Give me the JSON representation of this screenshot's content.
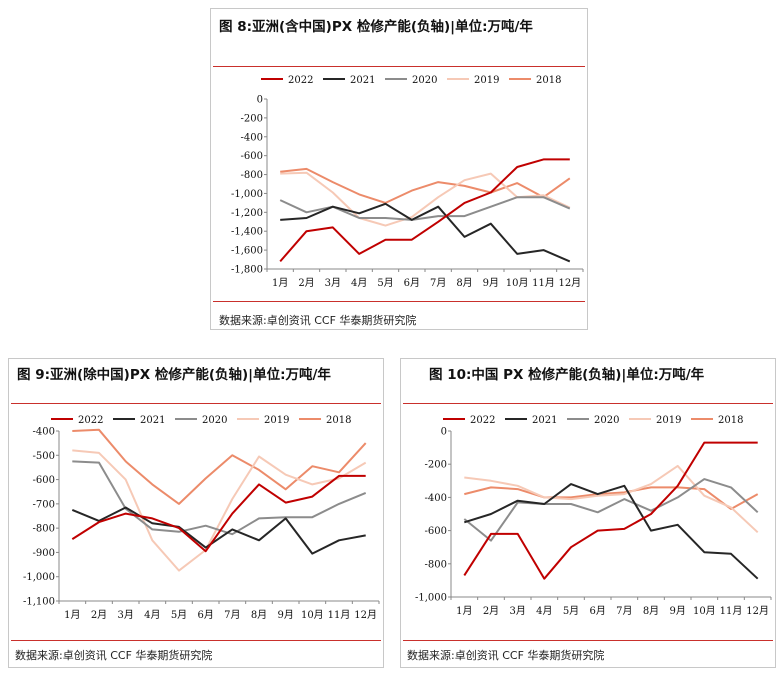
{
  "charts": [
    {
      "title": "图 8:亚洲(含中国)PX 检修产能(负轴)|单位:万吨/年",
      "source": "数据来源:卓创资讯 CCF 华泰期货研究院"
    },
    {
      "title": "图 9:亚洲(除中国)PX 检修产能(负轴)|单位:万吨/年",
      "source": "数据来源:卓创资讯 CCF 华泰期货研究院"
    },
    {
      "title": "图 10:中国 PX 检修产能(负轴)|单位:万吨/年",
      "source": "数据来源:卓创资讯 CCF 华泰期货研究院"
    }
  ],
  "chart_data": [
    {
      "type": "line",
      "title": "图 8:亚洲(含中国)PX 检修产能(负轴)|单位:万吨/年",
      "categories": [
        "1月",
        "2月",
        "3月",
        "4月",
        "5月",
        "6月",
        "7月",
        "8月",
        "9月",
        "10月",
        "11月",
        "12月"
      ],
      "yticks": [
        0,
        -200,
        -400,
        -600,
        -800,
        "-1,000",
        "-1,200",
        "-1,400",
        "-1,600",
        "-1,800"
      ],
      "ylim": [
        -1800,
        0
      ],
      "series": [
        {
          "name": "2022",
          "color": "#c00000",
          "width": 2,
          "values": [
            -1720,
            -1400,
            -1360,
            -1640,
            -1490,
            -1490,
            -1300,
            -1100,
            -990,
            -720,
            -640,
            -640
          ]
        },
        {
          "name": "2021",
          "color": "#262626",
          "width": 2,
          "values": [
            -1280,
            -1260,
            -1140,
            -1210,
            -1110,
            -1280,
            -1140,
            -1460,
            -1320,
            -1640,
            -1600,
            -1720
          ]
        },
        {
          "name": "2020",
          "color": "#8c8c8c",
          "width": 2,
          "values": [
            -1070,
            -1200,
            -1140,
            -1260,
            -1260,
            -1280,
            -1240,
            -1240,
            -1140,
            -1040,
            -1040,
            -1160
          ]
        },
        {
          "name": "2019",
          "color": "#f6c9b6",
          "width": 2,
          "values": [
            -790,
            -780,
            -990,
            -1260,
            -1340,
            -1250,
            -1040,
            -860,
            -790,
            -1040,
            -1020,
            -1150
          ]
        },
        {
          "name": "2018",
          "color": "#ec8b6a",
          "width": 2,
          "values": [
            -770,
            -740,
            -880,
            -1010,
            -1100,
            -970,
            -880,
            -920,
            -990,
            -890,
            -1040,
            -840
          ]
        }
      ]
    },
    {
      "type": "line",
      "title": "图 9:亚洲(除中国)PX 检修产能(负轴)|单位:万吨/年",
      "categories": [
        "1月",
        "2月",
        "3月",
        "4月",
        "5月",
        "6月",
        "7月",
        "8月",
        "9月",
        "10月",
        "11月",
        "12月"
      ],
      "yticks": [
        -400,
        -500,
        -600,
        -700,
        -800,
        -900,
        "-1,000",
        "-1,100"
      ],
      "ylim": [
        -1100,
        -400
      ],
      "series": [
        {
          "name": "2022",
          "color": "#c00000",
          "width": 2,
          "values": [
            -845,
            -775,
            -740,
            -760,
            -800,
            -895,
            -740,
            -620,
            -695,
            -670,
            -585,
            -585
          ]
        },
        {
          "name": "2021",
          "color": "#262626",
          "width": 2,
          "values": [
            -725,
            -770,
            -715,
            -780,
            -795,
            -880,
            -805,
            -850,
            -760,
            -905,
            -850,
            -830
          ]
        },
        {
          "name": "2020",
          "color": "#8c8c8c",
          "width": 2,
          "values": [
            -525,
            -530,
            -720,
            -805,
            -815,
            -790,
            -825,
            -760,
            -755,
            -755,
            -700,
            -655
          ]
        },
        {
          "name": "2019",
          "color": "#f6c9b6",
          "width": 2,
          "values": [
            -480,
            -490,
            -600,
            -850,
            -975,
            -890,
            -680,
            -505,
            -580,
            -620,
            -595,
            -530
          ]
        },
        {
          "name": "2018",
          "color": "#ec8b6a",
          "width": 2,
          "values": [
            -400,
            -395,
            -525,
            -620,
            -700,
            -595,
            -500,
            -560,
            -640,
            -545,
            -570,
            -450
          ]
        }
      ]
    },
    {
      "type": "line",
      "title": "图 10:中国 PX 检修产能(负轴)|单位:万吨/年",
      "categories": [
        "1月",
        "2月",
        "3月",
        "4月",
        "5月",
        "6月",
        "7月",
        "8月",
        "9月",
        "10月",
        "11月",
        "12月"
      ],
      "yticks": [
        0,
        -200,
        -400,
        -600,
        -800,
        "-1,000"
      ],
      "ylim": [
        -1000,
        0
      ],
      "series": [
        {
          "name": "2022",
          "color": "#c00000",
          "width": 2,
          "values": [
            -870,
            -620,
            -620,
            -890,
            -700,
            -600,
            -590,
            -500,
            -330,
            -70,
            -70,
            -70
          ]
        },
        {
          "name": "2021",
          "color": "#262626",
          "width": 2,
          "values": [
            -550,
            -500,
            -420,
            -440,
            -320,
            -380,
            -330,
            -600,
            -565,
            -730,
            -740,
            -890
          ]
        },
        {
          "name": "2020",
          "color": "#8c8c8c",
          "width": 2,
          "values": [
            -530,
            -660,
            -430,
            -440,
            -440,
            -490,
            -410,
            -480,
            -400,
            -290,
            -340,
            -490
          ]
        },
        {
          "name": "2019",
          "color": "#f6c9b6",
          "width": 2,
          "values": [
            -280,
            -300,
            -330,
            -400,
            -410,
            -390,
            -380,
            -320,
            -210,
            -390,
            -460,
            -610
          ]
        },
        {
          "name": "2018",
          "color": "#ec8b6a",
          "width": 2,
          "values": [
            -380,
            -340,
            -350,
            -400,
            -400,
            -380,
            -370,
            -340,
            -340,
            -350,
            -470,
            -380
          ]
        }
      ]
    }
  ]
}
